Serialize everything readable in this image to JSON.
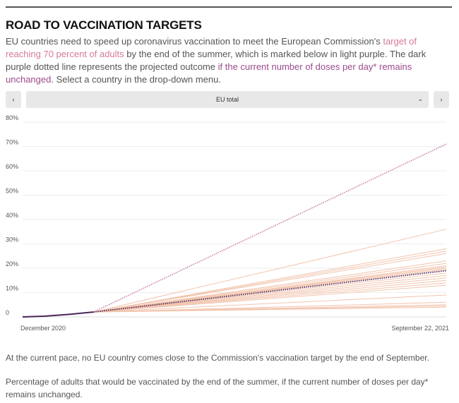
{
  "title": "ROAD TO VACCINATION TARGETS",
  "intro": {
    "t1": "EU countries need to speed up coronavirus vaccination to meet the European Commission's ",
    "link1": "target of reaching 70 percent of adults",
    "t2": " by the end of the summer, which is marked below in light purple. The dark purple dotted line represents the projected outcome ",
    "link2": "if the current number of doses per day* remains unchanged",
    "t3": ". Select a country in the drop-down menu."
  },
  "controls": {
    "prev": "‹",
    "next": "›",
    "selected": "EU total",
    "dropdown_icon": "chevron-down-icon"
  },
  "chart_data": {
    "type": "line",
    "ylim": [
      0,
      80
    ],
    "yticks": [
      "0",
      "10%",
      "20%",
      "30%",
      "40%",
      "50%",
      "60%",
      "70%",
      "80%"
    ],
    "x_labels": [
      "December 2020",
      "September 22, 2021"
    ],
    "x_range": [
      "2020-12-27",
      "2021-09-22"
    ],
    "grid": true,
    "colors": {
      "target": "#c0669a",
      "eu_projection": "#4a2456",
      "countries": "#f2c4ad",
      "eu_history": "#4a2456"
    },
    "eu_history": {
      "x": [
        "2020-12-27",
        "2021-01-10",
        "2021-01-25",
        "2021-02-10"
      ],
      "y": [
        0,
        0.3,
        1,
        2
      ]
    },
    "target_line": {
      "x": [
        "2021-02-10",
        "2021-09-22"
      ],
      "y": [
        2,
        71
      ]
    },
    "eu_projection": {
      "x": [
        "2021-02-10",
        "2021-09-22"
      ],
      "y": [
        2,
        19
      ]
    },
    "country_projections_end": [
      36,
      28,
      27,
      26,
      23,
      22,
      21,
      20.5,
      20,
      19.5,
      18,
      17,
      16,
      15,
      14,
      13,
      9,
      6,
      5,
      4.5,
      4
    ]
  },
  "footer": {
    "finding": "At the current pace, no EU country comes close to the Commission's vaccination target by the end of September.",
    "caption": "Percentage of adults that would be vaccinated by the end of the summer, if the current number of doses per day* remains unchanged."
  }
}
